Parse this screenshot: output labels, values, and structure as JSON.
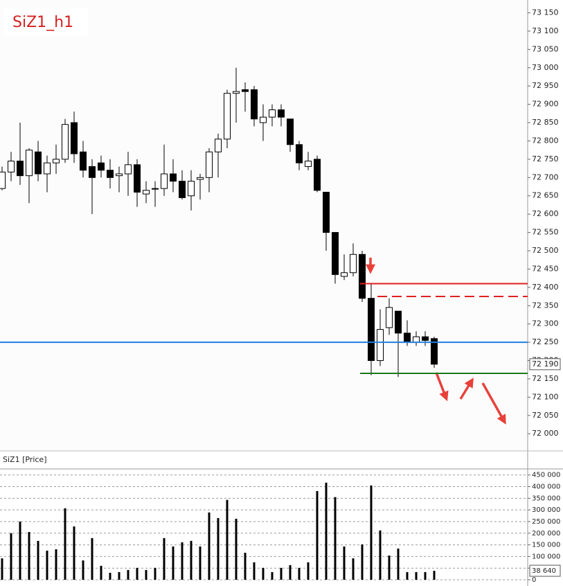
{
  "chart_data": [
    {
      "type": "candlestick",
      "title": "SiZ1_h1",
      "pane_label": "SiZ1 [Price]",
      "open": [
        72670,
        72715,
        72745,
        72705,
        72770,
        72710,
        72740,
        72750,
        72850,
        72770,
        72730,
        72740,
        72720,
        72705,
        72710,
        72735,
        72655,
        72670,
        72670,
        72710,
        72690,
        72650,
        72695,
        72700,
        72770,
        72805,
        72930,
        72940,
        72940,
        72850,
        72865,
        72885,
        72860,
        72790,
        72730,
        72750,
        72660,
        72550,
        72430,
        72440,
        72490,
        72370,
        72200,
        72290,
        72335,
        72275,
        72250,
        72265,
        72260
      ],
      "high": [
        72730,
        72770,
        72850,
        72780,
        72800,
        72760,
        72790,
        72860,
        72880,
        72800,
        72750,
        72760,
        72750,
        72730,
        72770,
        72750,
        72690,
        72690,
        72790,
        72750,
        72720,
        72720,
        72710,
        72780,
        72820,
        72940,
        73000,
        72960,
        72950,
        72900,
        72900,
        72900,
        72860,
        72800,
        72770,
        72760,
        72660,
        72550,
        72490,
        72520,
        72500,
        72410,
        72340,
        72370,
        72335,
        72310,
        72280,
        72280,
        72265
      ],
      "low": [
        72665,
        72690,
        72680,
        72630,
        72690,
        72660,
        72710,
        72740,
        72740,
        72700,
        72600,
        72700,
        72670,
        72660,
        72650,
        72620,
        72630,
        72620,
        72650,
        72660,
        72640,
        72610,
        72640,
        72660,
        72700,
        72780,
        72850,
        72880,
        72840,
        72800,
        72840,
        72840,
        72770,
        72720,
        72720,
        72660,
        72500,
        72410,
        72420,
        72430,
        72360,
        72160,
        72185,
        72270,
        72155,
        72240,
        72240,
        72240,
        72180
      ],
      "close": [
        72715,
        72745,
        72705,
        72775,
        72710,
        72740,
        72750,
        72845,
        72765,
        72720,
        72700,
        72720,
        72700,
        72710,
        72735,
        72660,
        72665,
        72670,
        72710,
        72690,
        72645,
        72690,
        72700,
        72770,
        72805,
        72930,
        72935,
        72935,
        72860,
        72865,
        72885,
        72865,
        72790,
        72740,
        72745,
        72665,
        72550,
        72435,
        72440,
        72490,
        72370,
        72200,
        72285,
        72345,
        72275,
        72250,
        72265,
        72255,
        72190
      ],
      "ylim": [
        71955,
        73185
      ],
      "yticks": [
        {
          "value": 72000,
          "label": "72 000"
        },
        {
          "value": 72050,
          "label": "72 050"
        },
        {
          "value": 72100,
          "label": "72 100"
        },
        {
          "value": 72150,
          "label": "72 150"
        },
        {
          "value": 72200,
          "label": "72 200"
        },
        {
          "value": 72250,
          "label": "72 250"
        },
        {
          "value": 72300,
          "label": "72 300"
        },
        {
          "value": 72350,
          "label": "72 350"
        },
        {
          "value": 72400,
          "label": "72 400"
        },
        {
          "value": 72450,
          "label": "72 450"
        },
        {
          "value": 72500,
          "label": "72 500"
        },
        {
          "value": 72550,
          "label": "72 550"
        },
        {
          "value": 72600,
          "label": "72 600"
        },
        {
          "value": 72650,
          "label": "72 650"
        },
        {
          "value": 72700,
          "label": "72 700"
        },
        {
          "value": 72750,
          "label": "72 750"
        },
        {
          "value": 72800,
          "label": "72 800"
        },
        {
          "value": 72850,
          "label": "72 850"
        },
        {
          "value": 72900,
          "label": "72 900"
        },
        {
          "value": 72950,
          "label": "72 950"
        },
        {
          "value": 73000,
          "label": "73 000"
        },
        {
          "value": 73050,
          "label": "73 050"
        },
        {
          "value": 73100,
          "label": "73 100"
        },
        {
          "value": 73150,
          "label": "73 150"
        }
      ],
      "last_value": {
        "value": 72190,
        "label": "72 190"
      },
      "levels": [
        {
          "value": 72250,
          "color": "#1f7fe0",
          "style": "solid"
        },
        {
          "value": 72410,
          "color": "#e02020",
          "style": "solid"
        },
        {
          "value": 72375,
          "color": "#e02020",
          "style": "dashed"
        },
        {
          "value": 72165,
          "color": "#1a7a1a",
          "style": "solid"
        }
      ],
      "grid": false
    },
    {
      "type": "bar",
      "color": "#000000",
      "values": [
        92000,
        200000,
        250000,
        205000,
        167000,
        125000,
        131000,
        307000,
        229000,
        83000,
        179000,
        60000,
        30000,
        33000,
        42000,
        51000,
        42000,
        51000,
        179000,
        143000,
        161000,
        167000,
        143000,
        289000,
        265000,
        343000,
        262000,
        116000,
        75000,
        51000,
        33000,
        51000,
        63000,
        51000,
        75000,
        381000,
        417000,
        355000,
        143000,
        92000,
        152000,
        405000,
        212000,
        104000,
        134000,
        33000,
        33000,
        33000,
        38640
      ],
      "ylim": [
        0,
        470000
      ],
      "yticks": [
        0,
        {
          "value": 50000,
          "label": "50 000"
        },
        {
          "value": 100000,
          "label": "100 000"
        },
        {
          "value": 150000,
          "label": "150 000"
        },
        {
          "value": 200000,
          "label": "200 000"
        },
        {
          "value": 250000,
          "label": "250 000"
        },
        {
          "value": 300000,
          "label": "300 000"
        },
        {
          "value": 350000,
          "label": "350 000"
        },
        {
          "value": 400000,
          "label": "400 000"
        },
        {
          "value": 450000,
          "label": "450 000"
        }
      ],
      "last_value": {
        "value": 38640,
        "label": "38 640"
      },
      "grid": true
    }
  ]
}
